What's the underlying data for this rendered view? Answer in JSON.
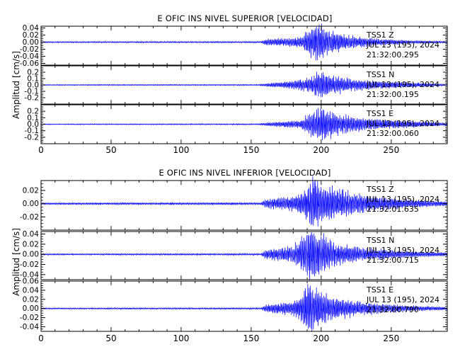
{
  "chart_data": [
    {
      "type": "line",
      "title": "E OFIC INS NIVEL SUPERIOR [VELOCIDAD]",
      "ylabel": "Amplitud [cm/s]",
      "xlim": [
        0,
        290
      ],
      "xticks": [
        "0",
        "50",
        "100",
        "150",
        "200",
        "250"
      ],
      "traces": [
        {
          "ylim": [
            -0.065,
            0.045
          ],
          "yticks": [
            "0.04",
            "0.02",
            "0.00",
            "-0.02",
            "-0.04",
            "-0.06"
          ],
          "annotation": [
            "TSS1    Z",
            "JUL 13 (195), 2024",
            "21:32:00.295"
          ],
          "envelope": [
            {
              "x": 0,
              "amp": 0.0015
            },
            {
              "x": 157,
              "amp": 0.0018
            },
            {
              "x": 160,
              "amp": 0.008
            },
            {
              "x": 175,
              "amp": 0.01
            },
            {
              "x": 186,
              "amp": 0.014
            },
            {
              "x": 192,
              "amp": 0.038
            },
            {
              "x": 198,
              "amp": 0.046
            },
            {
              "x": 206,
              "amp": 0.03
            },
            {
              "x": 220,
              "amp": 0.016
            },
            {
              "x": 240,
              "amp": 0.009
            },
            {
              "x": 265,
              "amp": 0.004
            },
            {
              "x": 290,
              "amp": 0.002
            }
          ]
        },
        {
          "ylim": [
            -0.3,
            0.3
          ],
          "yticks": [
            "0.2",
            "0.1",
            "0.0",
            "-0.1",
            "-0.2"
          ],
          "annotation": [
            "TSS1    N",
            "JUL 13 (195), 2024",
            "21:32:00.195"
          ],
          "envelope": [
            {
              "x": 0,
              "amp": 0.006
            },
            {
              "x": 155,
              "amp": 0.008
            },
            {
              "x": 160,
              "amp": 0.02
            },
            {
              "x": 180,
              "amp": 0.06
            },
            {
              "x": 192,
              "amp": 0.1
            },
            {
              "x": 200,
              "amp": 0.2
            },
            {
              "x": 206,
              "amp": 0.14
            },
            {
              "x": 225,
              "amp": 0.08
            },
            {
              "x": 245,
              "amp": 0.05
            },
            {
              "x": 270,
              "amp": 0.03
            },
            {
              "x": 290,
              "amp": 0.01
            }
          ]
        },
        {
          "ylim": [
            -0.3,
            0.3
          ],
          "yticks": [
            "0.2",
            "0.1",
            "0.0",
            "-0.1",
            "-0.2"
          ],
          "annotation": [
            "TSS1    E",
            "JUL 13 (195), 2024",
            "21:32:00.060"
          ],
          "envelope": [
            {
              "x": 0,
              "amp": 0.006
            },
            {
              "x": 155,
              "amp": 0.008
            },
            {
              "x": 160,
              "amp": 0.02
            },
            {
              "x": 185,
              "amp": 0.06
            },
            {
              "x": 195,
              "amp": 0.2
            },
            {
              "x": 202,
              "amp": 0.24
            },
            {
              "x": 212,
              "amp": 0.14
            },
            {
              "x": 235,
              "amp": 0.08
            },
            {
              "x": 260,
              "amp": 0.05
            },
            {
              "x": 290,
              "amp": 0.02
            }
          ]
        }
      ]
    },
    {
      "type": "line",
      "title": "E OFIC INS NIVEL INFERIOR [VELOCIDAD]",
      "ylabel": "Amplitud [cm/s]",
      "xlim": [
        0,
        290
      ],
      "xticks": [
        "0",
        "50",
        "100",
        "150",
        "200",
        "250"
      ],
      "traces": [
        {
          "ylim": [
            -0.04,
            0.035
          ],
          "yticks": [
            "0.02",
            "0.00",
            "-0.02"
          ],
          "annotation": [
            "TSS1    Z",
            "JUL 13 (195), 2024",
            "21:32:01.635"
          ],
          "envelope": [
            {
              "x": 0,
              "amp": 0.0012
            },
            {
              "x": 157,
              "amp": 0.0015
            },
            {
              "x": 160,
              "amp": 0.006
            },
            {
              "x": 180,
              "amp": 0.01
            },
            {
              "x": 188,
              "amp": 0.018
            },
            {
              "x": 194,
              "amp": 0.036
            },
            {
              "x": 200,
              "amp": 0.028
            },
            {
              "x": 210,
              "amp": 0.02
            },
            {
              "x": 230,
              "amp": 0.012
            },
            {
              "x": 260,
              "amp": 0.006
            },
            {
              "x": 290,
              "amp": 0.003
            }
          ]
        },
        {
          "ylim": [
            -0.05,
            0.045
          ],
          "yticks": [
            "0.04",
            "0.02",
            "0.00",
            "-0.02",
            "-0.04"
          ],
          "annotation": [
            "TSS1    N",
            "JUL 13 (195), 2024",
            "21:32:00.715"
          ],
          "envelope": [
            {
              "x": 0,
              "amp": 0.0012
            },
            {
              "x": 157,
              "amp": 0.0015
            },
            {
              "x": 160,
              "amp": 0.008
            },
            {
              "x": 180,
              "amp": 0.015
            },
            {
              "x": 188,
              "amp": 0.035
            },
            {
              "x": 192,
              "amp": 0.048
            },
            {
              "x": 200,
              "amp": 0.035
            },
            {
              "x": 210,
              "amp": 0.02
            },
            {
              "x": 230,
              "amp": 0.012
            },
            {
              "x": 260,
              "amp": 0.006
            },
            {
              "x": 290,
              "amp": 0.003
            }
          ]
        },
        {
          "ylim": [
            -0.05,
            0.06
          ],
          "yticks": [
            "0.06",
            "0.04",
            "0.02",
            "0.00",
            "-0.02",
            "-0.04"
          ],
          "annotation": [
            "TSS1    E",
            "JUL 13 (195), 2024",
            "21:32:00.790"
          ],
          "envelope": [
            {
              "x": 0,
              "amp": 0.0012
            },
            {
              "x": 157,
              "amp": 0.0015
            },
            {
              "x": 160,
              "amp": 0.008
            },
            {
              "x": 180,
              "amp": 0.014
            },
            {
              "x": 186,
              "amp": 0.025
            },
            {
              "x": 190,
              "amp": 0.05
            },
            {
              "x": 196,
              "amp": 0.04
            },
            {
              "x": 205,
              "amp": 0.025
            },
            {
              "x": 225,
              "amp": 0.014
            },
            {
              "x": 260,
              "amp": 0.006
            },
            {
              "x": 290,
              "amp": 0.003
            }
          ]
        }
      ]
    }
  ],
  "colors": {
    "trace": "#0000ff",
    "axes": "#000000",
    "background": "#ffffff"
  }
}
